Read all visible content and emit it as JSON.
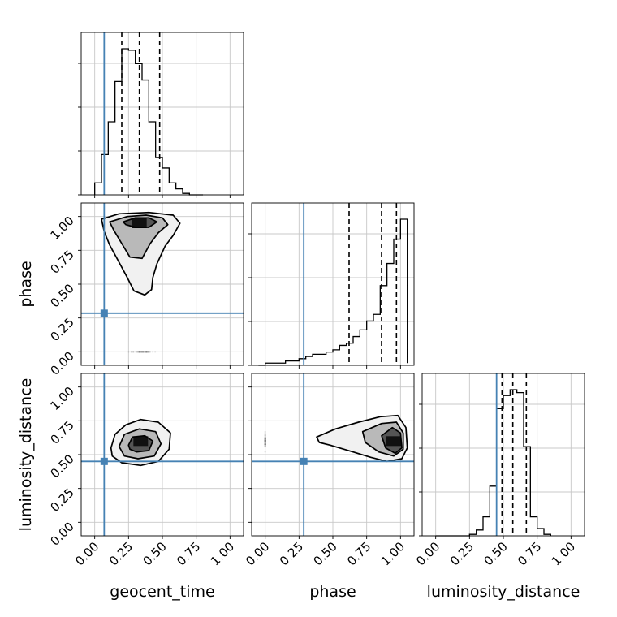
{
  "chart_data": {
    "type": "corner",
    "parameters": [
      "geocent_time",
      "phase",
      "luminosity_distance"
    ],
    "range": [
      -0.1,
      1.1
    ],
    "ticks": [
      "0.00",
      "0.25",
      "0.50",
      "0.75",
      "1.00"
    ],
    "tick_values": [
      0,
      0.25,
      0.5,
      0.75,
      1.0
    ],
    "grid": true,
    "colors": {
      "truth": "#4682b4",
      "hist": "#000000",
      "density": "#000000",
      "grid": "#c8c8c8"
    },
    "truths": {
      "geocent_time": 0.07,
      "phase": 0.285,
      "luminosity_distance": 0.45
    },
    "histograms": [
      {
        "parameter": "geocent_time",
        "bin_edges": [
          0.0,
          0.05,
          0.1,
          0.15,
          0.2,
          0.25,
          0.3,
          0.35,
          0.4,
          0.45,
          0.5,
          0.55,
          0.6,
          0.65,
          0.7,
          0.75,
          0.8
        ],
        "counts": [
          0.08,
          0.27,
          0.49,
          0.76,
          0.98,
          0.97,
          0.88,
          0.77,
          0.49,
          0.25,
          0.18,
          0.08,
          0.04,
          0.01,
          0.0,
          0.0
        ],
        "quantiles": [
          0.2,
          0.33,
          0.48
        ]
      },
      {
        "parameter": "phase",
        "bin_edges": [
          -0.05,
          0.0,
          0.05,
          0.1,
          0.15,
          0.2,
          0.25,
          0.3,
          0.35,
          0.4,
          0.45,
          0.5,
          0.55,
          0.6,
          0.65,
          0.7,
          0.75,
          0.8,
          0.85,
          0.9,
          0.95,
          1.0,
          1.05
        ],
        "counts": [
          0.0,
          0.01,
          0.01,
          0.01,
          0.02,
          0.02,
          0.03,
          0.04,
          0.05,
          0.05,
          0.06,
          0.07,
          0.09,
          0.1,
          0.13,
          0.16,
          0.2,
          0.23,
          0.36,
          0.46,
          0.57,
          0.66,
          0.01
        ],
        "quantiles": [
          0.62,
          0.86,
          0.97
        ]
      },
      {
        "parameter": "luminosity_distance",
        "bin_edges": [
          0.0,
          0.05,
          0.1,
          0.15,
          0.2,
          0.25,
          0.3,
          0.35,
          0.4,
          0.45,
          0.5,
          0.55,
          0.6,
          0.65,
          0.7,
          0.75,
          0.8,
          0.85
        ],
        "counts": [
          0.0,
          0.0,
          0.0,
          0.0,
          0.0,
          0.01,
          0.04,
          0.13,
          0.34,
          0.87,
          0.96,
          1.0,
          0.98,
          0.61,
          0.13,
          0.05,
          0.01
        ],
        "quantiles": [
          0.49,
          0.57,
          0.67
        ]
      }
    ],
    "densities": [
      {
        "x_param": "geocent_time",
        "y_param": "phase",
        "scatter_center": [
          0.35,
          0.72
        ],
        "peak": [
          0.33,
          0.95
        ],
        "contour_levels": [
          [
            [
              0.05,
              0.98
            ],
            [
              0.18,
              1.02
            ],
            [
              0.4,
              1.03
            ],
            [
              0.58,
              1.01
            ],
            [
              0.63,
              0.95
            ],
            [
              0.58,
              0.86
            ],
            [
              0.52,
              0.78
            ],
            [
              0.46,
              0.65
            ],
            [
              0.43,
              0.55
            ],
            [
              0.42,
              0.46
            ],
            [
              0.37,
              0.42
            ],
            [
              0.29,
              0.45
            ],
            [
              0.24,
              0.55
            ],
            [
              0.17,
              0.68
            ],
            [
              0.11,
              0.79
            ],
            [
              0.07,
              0.89
            ]
          ],
          [
            [
              0.11,
              0.96
            ],
            [
              0.24,
              1.0
            ],
            [
              0.38,
              1.01
            ],
            [
              0.5,
              0.99
            ],
            [
              0.54,
              0.94
            ],
            [
              0.47,
              0.88
            ],
            [
              0.41,
              0.8
            ],
            [
              0.35,
              0.69
            ],
            [
              0.26,
              0.7
            ],
            [
              0.2,
              0.8
            ],
            [
              0.14,
              0.9
            ]
          ],
          [
            [
              0.21,
              0.96
            ],
            [
              0.3,
              0.99
            ],
            [
              0.4,
              0.99
            ],
            [
              0.46,
              0.96
            ],
            [
              0.4,
              0.92
            ],
            [
              0.3,
              0.92
            ],
            [
              0.23,
              0.94
            ]
          ]
        ]
      },
      {
        "x_param": "geocent_time",
        "y_param": "luminosity_distance",
        "scatter_center": [
          0.36,
          0.58
        ],
        "peak": [
          0.34,
          0.6
        ],
        "contour_levels": [
          [
            [
              0.12,
              0.55
            ],
            [
              0.15,
              0.65
            ],
            [
              0.23,
              0.72
            ],
            [
              0.34,
              0.76
            ],
            [
              0.47,
              0.74
            ],
            [
              0.56,
              0.66
            ],
            [
              0.55,
              0.54
            ],
            [
              0.47,
              0.45
            ],
            [
              0.34,
              0.42
            ],
            [
              0.2,
              0.44
            ],
            [
              0.13,
              0.49
            ]
          ],
          [
            [
              0.18,
              0.56
            ],
            [
              0.22,
              0.65
            ],
            [
              0.33,
              0.69
            ],
            [
              0.45,
              0.67
            ],
            [
              0.49,
              0.58
            ],
            [
              0.44,
              0.49
            ],
            [
              0.32,
              0.47
            ],
            [
              0.22,
              0.49
            ]
          ],
          [
            [
              0.25,
              0.57
            ],
            [
              0.28,
              0.63
            ],
            [
              0.37,
              0.64
            ],
            [
              0.43,
              0.6
            ],
            [
              0.4,
              0.53
            ],
            [
              0.31,
              0.52
            ],
            [
              0.26,
              0.54
            ]
          ]
        ]
      },
      {
        "x_param": "phase",
        "y_param": "luminosity_distance",
        "scatter_center": [
          0.68,
          0.61
        ],
        "peak": [
          0.95,
          0.6
        ],
        "contour_levels": [
          [
            [
              0.38,
              0.63
            ],
            [
              0.52,
              0.69
            ],
            [
              0.69,
              0.74
            ],
            [
              0.85,
              0.78
            ],
            [
              0.98,
              0.79
            ],
            [
              1.04,
              0.7
            ],
            [
              1.05,
              0.55
            ],
            [
              1.01,
              0.47
            ],
            [
              0.9,
              0.45
            ],
            [
              0.78,
              0.48
            ],
            [
              0.65,
              0.52
            ],
            [
              0.48,
              0.57
            ],
            [
              0.4,
              0.59
            ]
          ],
          [
            [
              0.72,
              0.67
            ],
            [
              0.86,
              0.73
            ],
            [
              0.97,
              0.74
            ],
            [
              1.02,
              0.66
            ],
            [
              1.02,
              0.54
            ],
            [
              0.95,
              0.49
            ],
            [
              0.84,
              0.52
            ],
            [
              0.74,
              0.59
            ]
          ],
          [
            [
              0.86,
              0.64
            ],
            [
              0.94,
              0.7
            ],
            [
              1.0,
              0.66
            ],
            [
              1.01,
              0.55
            ],
            [
              0.96,
              0.51
            ],
            [
              0.89,
              0.55
            ]
          ]
        ]
      }
    ]
  }
}
